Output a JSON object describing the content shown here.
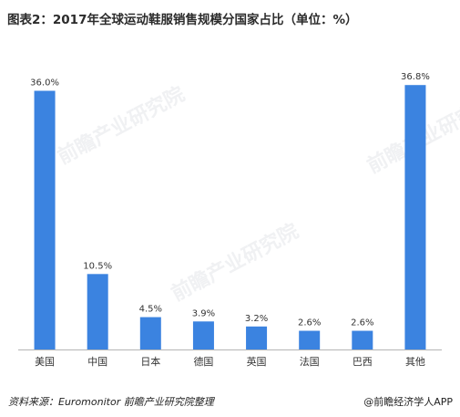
{
  "title": "图表2：2017年全球运动鞋服销售规模分国家占比（单位：%）",
  "watermark": "前瞻产业研究院",
  "footer": {
    "source": "资料来源：Euromonitor  前瞻产业研究院整理",
    "brand": "@前瞻经济学人APP"
  },
  "colors": {
    "bar": "#3b83e0",
    "axis": "#b5b5b5"
  },
  "chart_data": {
    "type": "bar",
    "categories": [
      "美国",
      "中国",
      "日本",
      "德国",
      "英国",
      "法国",
      "巴西",
      "其他"
    ],
    "values": [
      36.0,
      10.5,
      4.5,
      3.9,
      3.2,
      2.6,
      2.6,
      36.8
    ],
    "value_labels": [
      "36.0%",
      "10.5%",
      "4.5%",
      "3.9%",
      "3.2%",
      "2.6%",
      "2.6%",
      "36.8%"
    ],
    "ylim": [
      0,
      40
    ],
    "grid": false,
    "legend": "none"
  }
}
